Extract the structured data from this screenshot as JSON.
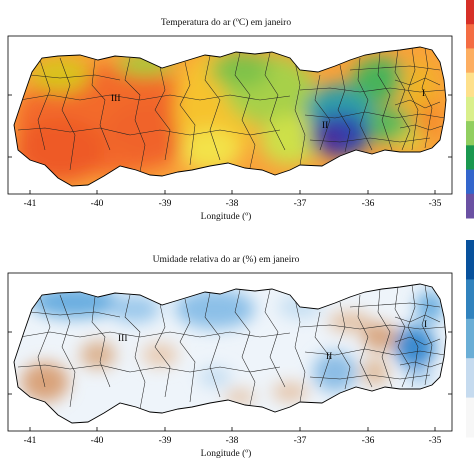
{
  "figure": {
    "panels": [
      {
        "title": "Temperatura do ar (ºC) em janeiro",
        "xlabel": "Longitude (º)",
        "x_ticks": [
          "-41",
          "-40",
          "-39",
          "-38",
          "-37",
          "-36",
          "-35"
        ],
        "region_labels": [
          "III",
          "II",
          "I"
        ],
        "colorbar_colors": [
          "#d73027",
          "#f46d43",
          "#fdae61",
          "#fee08b",
          "#d9ef8b",
          "#91cf60",
          "#1a9850",
          "#3366cc",
          "#6a51a3"
        ]
      },
      {
        "title": "Umidade relativa do ar (%) em janeiro",
        "xlabel": "Longitude (º)",
        "x_ticks": [
          "-41",
          "-40",
          "-39",
          "-38",
          "-37",
          "-36",
          "-35"
        ],
        "region_labels": [
          "III",
          "II",
          "I"
        ],
        "colorbar_colors": [
          "#08519c",
          "#3182bd",
          "#6baed6",
          "#c6dbef",
          "#f7f7f7"
        ]
      }
    ]
  },
  "chart_data": [
    {
      "type": "map",
      "title": "Temperatura do ar (ºC) em janeiro",
      "xlabel": "Longitude (º)",
      "xlim": [
        -41.2,
        -34.8
      ],
      "x_ticks": [
        -41,
        -40,
        -39,
        -38,
        -37,
        -36,
        -35
      ],
      "regions": [
        "III",
        "II",
        "I"
      ],
      "colormap": "red-orange-yellow-green-blue-purple"
    },
    {
      "type": "map",
      "title": "Umidade relativa do ar (%) em janeiro",
      "xlabel": "Longitude (º)",
      "xlim": [
        -41.2,
        -34.8
      ],
      "x_ticks": [
        -41,
        -40,
        -39,
        -38,
        -37,
        -36,
        -35
      ],
      "regions": [
        "III",
        "II",
        "I"
      ],
      "colormap": "brown-white-blue"
    }
  ]
}
